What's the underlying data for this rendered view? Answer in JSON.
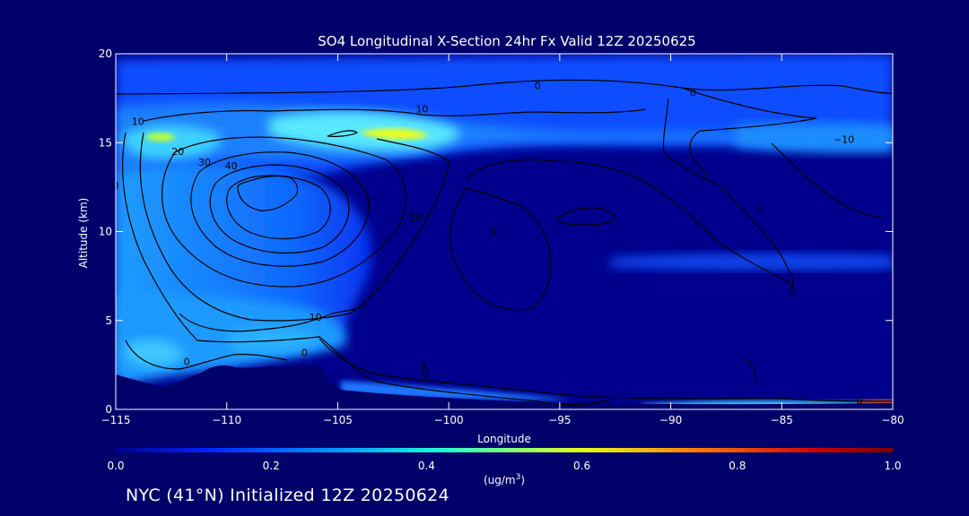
{
  "chart_data": {
    "type": "heatmap",
    "title": "SO4 Longitudinal X-Section 24hr  Fx Valid 12Z 20250625",
    "xlabel": "Longitude",
    "ylabel": "Altitude (km)",
    "xlim": [
      -115,
      -80
    ],
    "ylim": [
      0,
      20
    ],
    "x_ticks": [
      -115,
      -110,
      -105,
      -100,
      -95,
      -90,
      -85,
      -80
    ],
    "x_tick_labels": [
      "−115",
      "−110",
      "−105",
      "−100",
      "−95",
      "−90",
      "−85",
      "−80"
    ],
    "y_ticks": [
      0,
      5,
      10,
      15,
      20
    ],
    "y_tick_labels": [
      "0",
      "5",
      "10",
      "15",
      "20"
    ],
    "colorbar": {
      "min": 0.0,
      "max": 1.0,
      "ticks": [
        0.0,
        0.2,
        0.4,
        0.6,
        0.8,
        1.0
      ],
      "tick_labels": [
        "0.0",
        "0.2",
        "0.4",
        "0.6",
        "0.8",
        "1.0"
      ],
      "unit_label": "(ug/m",
      "unit_superscript": "3",
      "unit_suffix": ")",
      "colors": [
        "#00008f",
        "#0024ff",
        "#00a4ff",
        "#20ffd0",
        "#e4ff1a",
        "#ff7a00",
        "#d00000",
        "#7a0000"
      ]
    },
    "concentration_features": [
      {
        "longitude": -111.5,
        "altitude_km": 15.2,
        "value": 0.4
      },
      {
        "longitude": -102.5,
        "altitude_km": 15.3,
        "value": 0.6
      },
      {
        "longitude": -110.0,
        "altitude_km": 12.5,
        "value": 0.25
      },
      {
        "longitude": -88.0,
        "altitude_km": 15.5,
        "value": 0.25
      },
      {
        "longitude": -113.0,
        "altitude_km": 3.0,
        "value": 0.25
      },
      {
        "longitude": -107.0,
        "altitude_km": 3.0,
        "value": 0.2
      },
      {
        "longitude": -83.0,
        "altitude_km": 0.2,
        "value": 0.8
      }
    ],
    "contour_labels": [
      {
        "text": "0",
        "longitude": -115.0,
        "altitude_km": 12.4
      },
      {
        "text": "10",
        "longitude": -114.0,
        "altitude_km": 16.0
      },
      {
        "text": "20",
        "longitude": -112.2,
        "altitude_km": 14.3
      },
      {
        "text": "30",
        "longitude": -111.0,
        "altitude_km": 13.7
      },
      {
        "text": "40",
        "longitude": -109.8,
        "altitude_km": 13.5
      },
      {
        "text": "10",
        "longitude": -101.2,
        "altitude_km": 16.7
      },
      {
        "text": "0",
        "longitude": -96.0,
        "altitude_km": 18.0
      },
      {
        "text": "0",
        "longitude": -89.0,
        "altitude_km": 17.6
      },
      {
        "text": "−10",
        "longitude": -82.2,
        "altitude_km": 15.0
      },
      {
        "text": "0",
        "longitude": -98.0,
        "altitude_km": 9.8
      },
      {
        "text": "0",
        "longitude": -86.0,
        "altitude_km": 11.1
      },
      {
        "text": "10",
        "longitude": -101.5,
        "altitude_km": 10.6
      },
      {
        "text": "10",
        "longitude": -106.0,
        "altitude_km": 5.0
      },
      {
        "text": "0",
        "longitude": -111.8,
        "altitude_km": 2.5
      },
      {
        "text": "0",
        "longitude": -106.5,
        "altitude_km": 3.0
      },
      {
        "text": "0",
        "longitude": -81.5,
        "altitude_km": 0.3
      }
    ],
    "grid": false
  },
  "footer": {
    "label": "NYC (41°N) Initialized 12Z 20250624"
  }
}
